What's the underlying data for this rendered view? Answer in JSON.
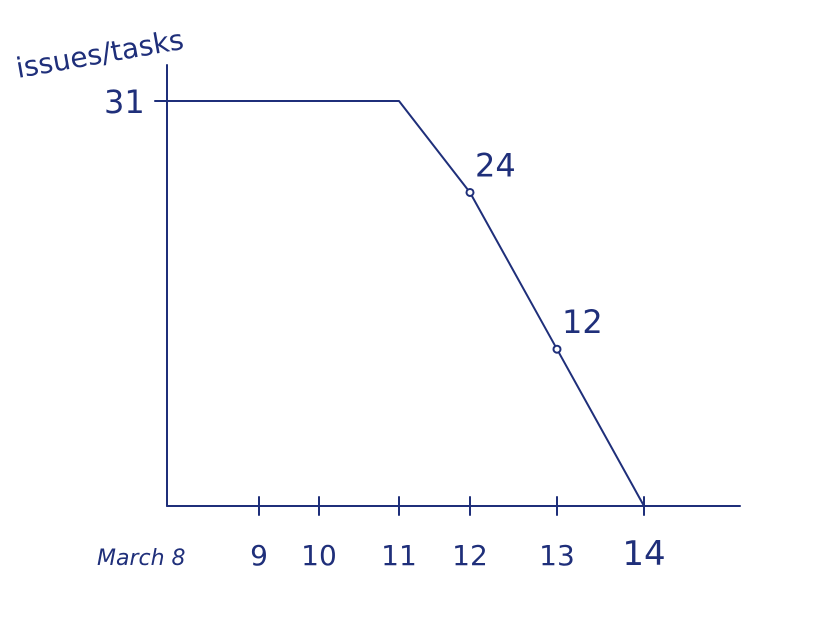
{
  "chart_data": {
    "type": "line",
    "title": "",
    "xlabel": "",
    "ylabel": "issues/tasks",
    "x_tick_labels": [
      "March 8",
      "9",
      "10",
      "11",
      "12",
      "13",
      "14"
    ],
    "y_tick_labels": [
      "31"
    ],
    "series": [
      {
        "x": [
          8,
          11,
          12,
          13,
          14
        ],
        "y": [
          31,
          31,
          24,
          12,
          0
        ],
        "marked_points": [
          {
            "x": 12,
            "y": 24,
            "label": "24"
          },
          {
            "x": 13,
            "y": 12,
            "label": "12"
          }
        ]
      }
    ],
    "xlim": [
      8,
      15.2
    ],
    "ylim": [
      0,
      31
    ],
    "grid": false,
    "legend": "none",
    "color": "#1f2f7a"
  }
}
